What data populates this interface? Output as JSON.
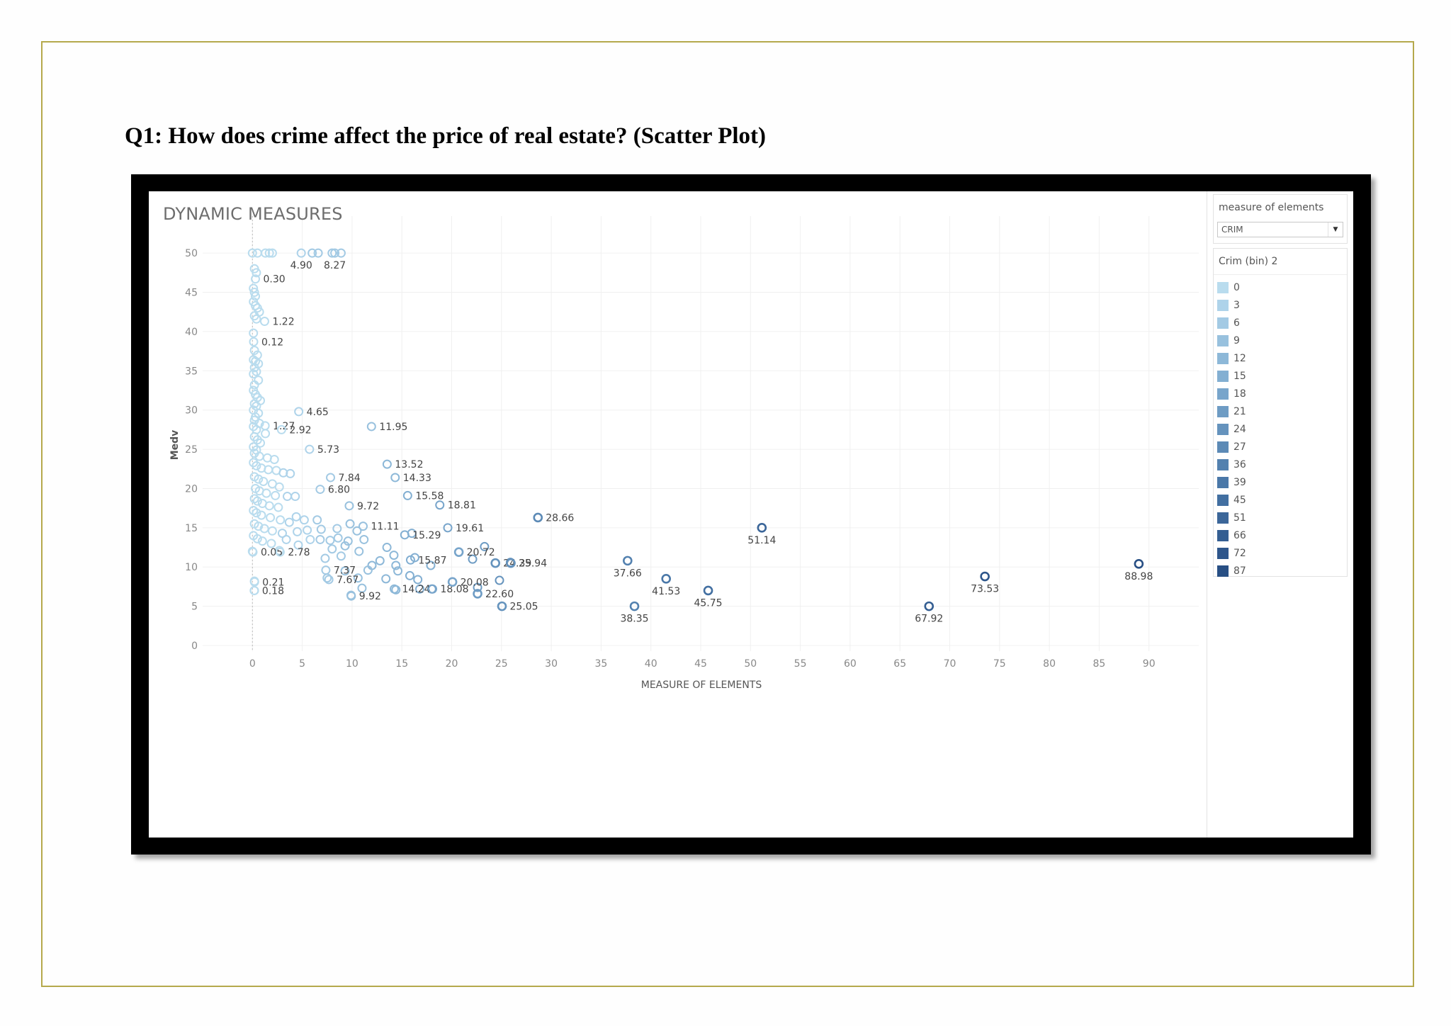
{
  "question": "Q1: How does crime affect the price of real estate? (Scatter Plot)",
  "dashboard": {
    "title": "DYNAMIC MEASURES",
    "parameter": {
      "label": "measure of elements",
      "value": "CRIM"
    },
    "legend": {
      "title": "Crim (bin) 2",
      "items": [
        {
          "label": "0",
          "color": "#b9dcee"
        },
        {
          "label": "3",
          "color": "#aed3ea"
        },
        {
          "label": "6",
          "color": "#a3cae4"
        },
        {
          "label": "9",
          "color": "#98c1de"
        },
        {
          "label": "12",
          "color": "#8db8d8"
        },
        {
          "label": "15",
          "color": "#83afd2"
        },
        {
          "label": "18",
          "color": "#78a5cb"
        },
        {
          "label": "21",
          "color": "#6e9cc4"
        },
        {
          "label": "24",
          "color": "#6593bd"
        },
        {
          "label": "27",
          "color": "#5c8ab6"
        },
        {
          "label": "36",
          "color": "#5381af"
        },
        {
          "label": "39",
          "color": "#4a78a8"
        },
        {
          "label": "45",
          "color": "#426fa1"
        },
        {
          "label": "51",
          "color": "#3b6699"
        },
        {
          "label": "66",
          "color": "#345e92"
        },
        {
          "label": "72",
          "color": "#2e568b"
        },
        {
          "label": "87",
          "color": "#284f84"
        }
      ]
    }
  },
  "chart_data": {
    "type": "scatter",
    "title": "DYNAMIC MEASURES",
    "xlabel": "MEASURE OF ELEMENTS",
    "ylabel": "Medv",
    "xlim": [
      -5,
      95
    ],
    "ylim": [
      0,
      52
    ],
    "xticks": [
      0,
      5,
      10,
      15,
      20,
      25,
      30,
      35,
      40,
      45,
      50,
      55,
      60,
      65,
      70,
      75,
      80,
      85,
      90
    ],
    "yticks": [
      0,
      5,
      10,
      15,
      20,
      25,
      30,
      35,
      40,
      45,
      50
    ],
    "grid": true,
    "legend_position": "right",
    "labeled_points": [
      {
        "x": 4.9,
        "y": 50,
        "label": "4.90"
      },
      {
        "x": 8.27,
        "y": 50,
        "label": "8.27"
      },
      {
        "x": 0.3,
        "y": 46.7,
        "label": "0.30"
      },
      {
        "x": 1.22,
        "y": 41.3,
        "label": "1.22"
      },
      {
        "x": 0.12,
        "y": 38.7,
        "label": "0.12"
      },
      {
        "x": 4.65,
        "y": 29.8,
        "label": "4.65"
      },
      {
        "x": 1.27,
        "y": 28.0,
        "label": "1.27"
      },
      {
        "x": 2.92,
        "y": 27.5,
        "label": "2.92"
      },
      {
        "x": 5.73,
        "y": 25.0,
        "label": "5.73"
      },
      {
        "x": 11.95,
        "y": 27.9,
        "label": "11.95"
      },
      {
        "x": 13.52,
        "y": 23.1,
        "label": "13.52"
      },
      {
        "x": 7.84,
        "y": 21.4,
        "label": "7.84"
      },
      {
        "x": 14.33,
        "y": 21.4,
        "label": "14.33"
      },
      {
        "x": 6.8,
        "y": 19.9,
        "label": "6.80"
      },
      {
        "x": 9.72,
        "y": 17.8,
        "label": "9.72"
      },
      {
        "x": 15.58,
        "y": 19.1,
        "label": "15.58"
      },
      {
        "x": 18.81,
        "y": 17.9,
        "label": "18.81"
      },
      {
        "x": 11.11,
        "y": 15.2,
        "label": "11.11"
      },
      {
        "x": 15.29,
        "y": 14.1,
        "label": "15.29"
      },
      {
        "x": 19.61,
        "y": 15.0,
        "label": "19.61"
      },
      {
        "x": 28.66,
        "y": 16.3,
        "label": "28.66"
      },
      {
        "x": 51.14,
        "y": 15.0,
        "label": "51.14"
      },
      {
        "x": 15.87,
        "y": 10.9,
        "label": "15.87"
      },
      {
        "x": 20.72,
        "y": 11.9,
        "label": "20.72"
      },
      {
        "x": 24.39,
        "y": 10.5,
        "label": "24.39"
      },
      {
        "x": 25.94,
        "y": 10.5,
        "label": "25.94"
      },
      {
        "x": 0.05,
        "y": 11.9,
        "label": "0.05"
      },
      {
        "x": 2.78,
        "y": 11.9,
        "label": "2.78"
      },
      {
        "x": 7.37,
        "y": 9.6,
        "label": "7.37"
      },
      {
        "x": 0.21,
        "y": 8.1,
        "label": "0.21"
      },
      {
        "x": 7.67,
        "y": 8.4,
        "label": "7.67"
      },
      {
        "x": 0.18,
        "y": 7.0,
        "label": "0.18"
      },
      {
        "x": 9.92,
        "y": 6.3,
        "label": "9.92"
      },
      {
        "x": 14.24,
        "y": 7.2,
        "label": "14.24"
      },
      {
        "x": 18.08,
        "y": 7.2,
        "label": "18.08"
      },
      {
        "x": 20.08,
        "y": 8.1,
        "label": "20.08"
      },
      {
        "x": 22.6,
        "y": 6.6,
        "label": "22.60"
      },
      {
        "x": 25.05,
        "y": 5.0,
        "label": "25.05"
      },
      {
        "x": 37.66,
        "y": 10.8,
        "label": "37.66"
      },
      {
        "x": 41.53,
        "y": 8.5,
        "label": "41.53"
      },
      {
        "x": 45.75,
        "y": 7.0,
        "label": "45.75"
      },
      {
        "x": 38.35,
        "y": 5.0,
        "label": "38.35"
      },
      {
        "x": 67.92,
        "y": 5.0,
        "label": "67.92"
      },
      {
        "x": 73.53,
        "y": 8.8,
        "label": "73.53"
      },
      {
        "x": 88.98,
        "y": 10.4,
        "label": "88.98"
      }
    ],
    "other_points": [
      [
        0,
        50
      ],
      [
        0.5,
        50
      ],
      [
        1.3,
        50
      ],
      [
        1.7,
        50
      ],
      [
        2.0,
        50
      ],
      [
        6.0,
        50
      ],
      [
        6.6,
        50
      ],
      [
        8.0,
        50
      ],
      [
        8.9,
        50
      ],
      [
        0.2,
        48.0
      ],
      [
        0.4,
        47.5
      ],
      [
        0.1,
        45.5
      ],
      [
        0.2,
        45.0
      ],
      [
        0.3,
        44.5
      ],
      [
        0.1,
        43.8
      ],
      [
        0.3,
        43.3
      ],
      [
        0.5,
        43.0
      ],
      [
        0.7,
        42.5
      ],
      [
        0.2,
        42.0
      ],
      [
        0.4,
        41.6
      ],
      [
        0.1,
        39.8
      ],
      [
        0.2,
        37.6
      ],
      [
        0.5,
        37.0
      ],
      [
        0.1,
        36.4
      ],
      [
        0.3,
        36.2
      ],
      [
        0.6,
        35.9
      ],
      [
        0.2,
        35.4
      ],
      [
        0.4,
        34.9
      ],
      [
        0.1,
        34.6
      ],
      [
        0.6,
        33.8
      ],
      [
        0.2,
        33.2
      ],
      [
        0.1,
        32.5
      ],
      [
        0.3,
        32.0
      ],
      [
        0.5,
        31.6
      ],
      [
        0.8,
        31.2
      ],
      [
        0.2,
        30.8
      ],
      [
        0.4,
        30.5
      ],
      [
        0.1,
        30.0
      ],
      [
        0.6,
        29.6
      ],
      [
        0.3,
        29.1
      ],
      [
        0.2,
        28.7
      ],
      [
        0.7,
        28.3
      ],
      [
        0.1,
        27.9
      ],
      [
        0.4,
        27.5
      ],
      [
        1.3,
        27.0
      ],
      [
        0.2,
        26.6
      ],
      [
        0.5,
        26.2
      ],
      [
        0.8,
        25.8
      ],
      [
        0.1,
        25.3
      ],
      [
        0.4,
        24.9
      ],
      [
        0.2,
        24.5
      ],
      [
        0.7,
        24.1
      ],
      [
        1.5,
        23.9
      ],
      [
        2.2,
        23.7
      ],
      [
        0.1,
        23.3
      ],
      [
        0.4,
        22.9
      ],
      [
        0.9,
        22.6
      ],
      [
        1.6,
        22.4
      ],
      [
        2.4,
        22.3
      ],
      [
        3.1,
        22.0
      ],
      [
        3.8,
        21.9
      ],
      [
        0.2,
        21.5
      ],
      [
        0.6,
        21.2
      ],
      [
        1.1,
        20.9
      ],
      [
        2.0,
        20.6
      ],
      [
        2.7,
        20.2
      ],
      [
        0.3,
        20.0
      ],
      [
        0.7,
        19.7
      ],
      [
        1.4,
        19.4
      ],
      [
        2.3,
        19.1
      ],
      [
        3.5,
        19.0
      ],
      [
        4.3,
        19.0
      ],
      [
        0.2,
        18.7
      ],
      [
        0.5,
        18.4
      ],
      [
        1.0,
        18.1
      ],
      [
        1.7,
        17.8
      ],
      [
        2.6,
        17.6
      ],
      [
        0.1,
        17.2
      ],
      [
        0.4,
        16.9
      ],
      [
        0.9,
        16.6
      ],
      [
        1.8,
        16.3
      ],
      [
        2.8,
        16.0
      ],
      [
        3.7,
        15.7
      ],
      [
        4.4,
        16.4
      ],
      [
        5.2,
        16.0
      ],
      [
        6.5,
        16.0
      ],
      [
        0.2,
        15.5
      ],
      [
        0.6,
        15.2
      ],
      [
        1.2,
        14.9
      ],
      [
        2.0,
        14.6
      ],
      [
        3.0,
        14.3
      ],
      [
        4.5,
        14.5
      ],
      [
        5.5,
        14.7
      ],
      [
        6.9,
        14.8
      ],
      [
        8.5,
        14.9
      ],
      [
        9.8,
        15.5
      ],
      [
        10.5,
        14.6
      ],
      [
        0.1,
        14.0
      ],
      [
        0.5,
        13.6
      ],
      [
        1.0,
        13.3
      ],
      [
        1.9,
        13.0
      ],
      [
        3.4,
        13.5
      ],
      [
        4.6,
        12.8
      ],
      [
        5.8,
        13.5
      ],
      [
        6.8,
        13.5
      ],
      [
        7.8,
        13.4
      ],
      [
        8.6,
        13.7
      ],
      [
        9.6,
        13.3
      ],
      [
        11.2,
        13.5
      ],
      [
        0.0,
        12.0
      ],
      [
        2.7,
        12.1
      ],
      [
        7.3,
        11.1
      ],
      [
        8.0,
        12.3
      ],
      [
        8.9,
        11.4
      ],
      [
        9.3,
        12.7
      ],
      [
        10.7,
        12.0
      ],
      [
        13.5,
        12.5
      ],
      [
        14.2,
        11.5
      ],
      [
        16.0,
        14.3
      ],
      [
        12.0,
        10.2
      ],
      [
        12.8,
        10.8
      ],
      [
        14.4,
        10.2
      ],
      [
        16.3,
        11.2
      ],
      [
        17.9,
        10.2
      ],
      [
        22.1,
        11.0
      ],
      [
        23.3,
        12.6
      ],
      [
        25.9,
        10.6
      ],
      [
        9.3,
        9.5
      ],
      [
        11.6,
        9.6
      ],
      [
        14.6,
        9.5
      ],
      [
        16.6,
        8.4
      ],
      [
        15.8,
        8.9
      ],
      [
        13.4,
        8.5
      ],
      [
        10.6,
        8.6
      ],
      [
        7.5,
        8.6
      ],
      [
        11.0,
        7.3
      ],
      [
        24.8,
        8.3
      ],
      [
        9.9,
        6.4
      ],
      [
        14.4,
        7.1
      ],
      [
        16.8,
        7.2
      ],
      [
        18.0,
        7.2
      ],
      [
        22.6,
        7.4
      ],
      [
        0.2,
        8.2
      ],
      [
        0.2,
        7.0
      ]
    ]
  }
}
